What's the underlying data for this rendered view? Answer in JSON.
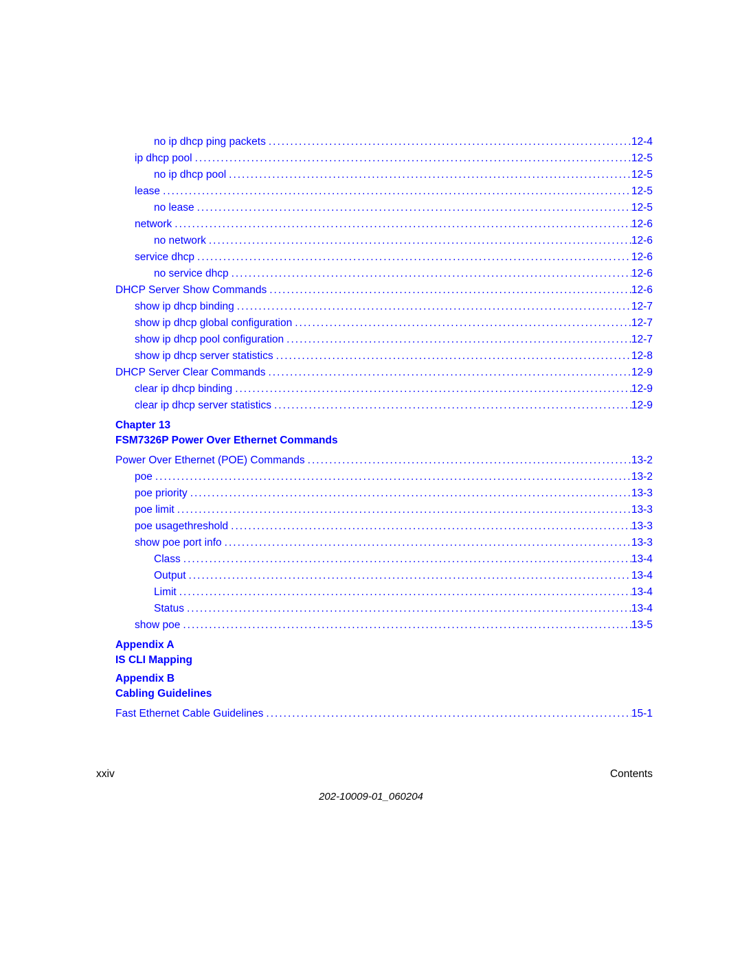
{
  "link_color": "#0000ff",
  "text_color": "#000000",
  "background_color": "#ffffff",
  "font_size_pt": 12,
  "entries": [
    {
      "label": "no ip dhcp ping packets",
      "page": "12-4",
      "indent": 2
    },
    {
      "label": "ip dhcp pool",
      "page": "12-5",
      "indent": 1
    },
    {
      "label": "no ip dhcp pool",
      "page": "12-5",
      "indent": 2
    },
    {
      "label": "lease",
      "page": "12-5",
      "indent": 1
    },
    {
      "label": "no lease",
      "page": "12-5",
      "indent": 2
    },
    {
      "label": "network",
      "page": "12-6",
      "indent": 1
    },
    {
      "label": "no network",
      "page": "12-6",
      "indent": 2
    },
    {
      "label": "service dhcp",
      "page": "12-6",
      "indent": 1
    },
    {
      "label": "no service dhcp",
      "page": "12-6",
      "indent": 2
    },
    {
      "label": "DHCP Server Show Commands",
      "page": "12-6",
      "indent": 0
    },
    {
      "label": "show ip dhcp binding",
      "page": "12-7",
      "indent": 1
    },
    {
      "label": "show ip dhcp global configuration",
      "page": "12-7",
      "indent": 1
    },
    {
      "label": "show ip dhcp pool configuration",
      "page": "12-7",
      "indent": 1
    },
    {
      "label": "show ip dhcp server statistics",
      "page": "12-8",
      "indent": 1
    },
    {
      "label": "DHCP Server Clear Commands",
      "page": "12-9",
      "indent": 0
    },
    {
      "label": "clear ip dhcp binding",
      "page": "12-9",
      "indent": 1
    },
    {
      "label": "clear ip dhcp server statistics",
      "page": "12-9",
      "indent": 1
    }
  ],
  "chapter13": {
    "line1": "Chapter 13",
    "line2": "FSM7326P Power Over Ethernet Commands"
  },
  "entries13": [
    {
      "label": "Power Over Ethernet (POE) Commands",
      "page": "13-2",
      "indent": 0
    },
    {
      "label": "poe",
      "page": "13-2",
      "indent": 1
    },
    {
      "label": "poe priority",
      "page": "13-3",
      "indent": 1
    },
    {
      "label": "poe limit",
      "page": "13-3",
      "indent": 1
    },
    {
      "label": "poe usagethreshold",
      "page": "13-3",
      "indent": 1
    },
    {
      "label": "show poe port info",
      "page": "13-3",
      "indent": 1
    },
    {
      "label": "Class",
      "page": "13-4",
      "indent": 2
    },
    {
      "label": "Output",
      "page": "13-4",
      "indent": 2
    },
    {
      "label": "Limit",
      "page": "13-4",
      "indent": 2
    },
    {
      "label": "Status",
      "page": "13-4",
      "indent": 2
    },
    {
      "label": "show poe",
      "page": "13-5",
      "indent": 1
    }
  ],
  "appendixA": {
    "line1": "Appendix A",
    "line2": "IS CLI Mapping"
  },
  "appendixB": {
    "line1": "Appendix B",
    "line2": "Cabling Guidelines"
  },
  "entriesB": [
    {
      "label": "Fast Ethernet Cable Guidelines",
      "page": "15-1",
      "indent": 0
    }
  ],
  "footer": {
    "left": "xxiv",
    "right": "Contents"
  },
  "docnum": "202-10009-01_060204"
}
